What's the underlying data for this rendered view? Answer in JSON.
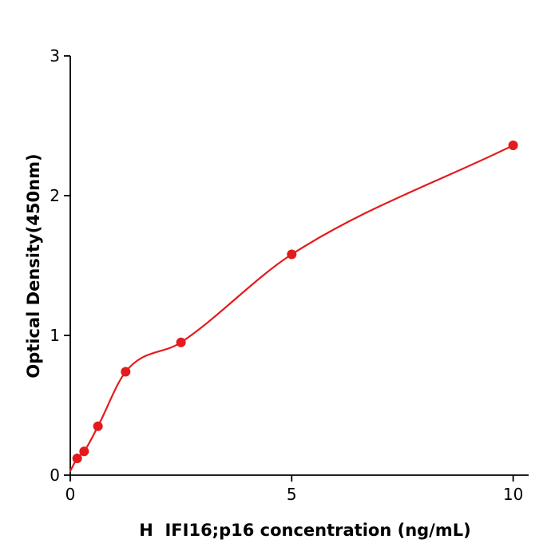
{
  "figure": {
    "background": "#ffffff"
  },
  "chart_data": {
    "type": "scatter",
    "xlabel": "H  IFI16;p16 concentration (ng/mL)",
    "ylabel": "Optical Density(450nm)",
    "x": [
      0.156,
      0.313,
      0.625,
      1.25,
      2.5,
      5,
      10
    ],
    "y": [
      0.12,
      0.17,
      0.35,
      0.74,
      0.95,
      1.58,
      2.36
    ],
    "fit_line": true,
    "curve_start": [
      0,
      0.03
    ],
    "xlim": [
      0,
      10.35
    ],
    "ylim": [
      0,
      3
    ],
    "xticks": [
      0,
      5,
      10
    ],
    "yticks": [
      0,
      1,
      2,
      3
    ],
    "grid": false,
    "point_color": "#e41a1c",
    "line_color": "#e41a1c",
    "axis_color": "#000000",
    "tick_label_color": "#000000"
  }
}
